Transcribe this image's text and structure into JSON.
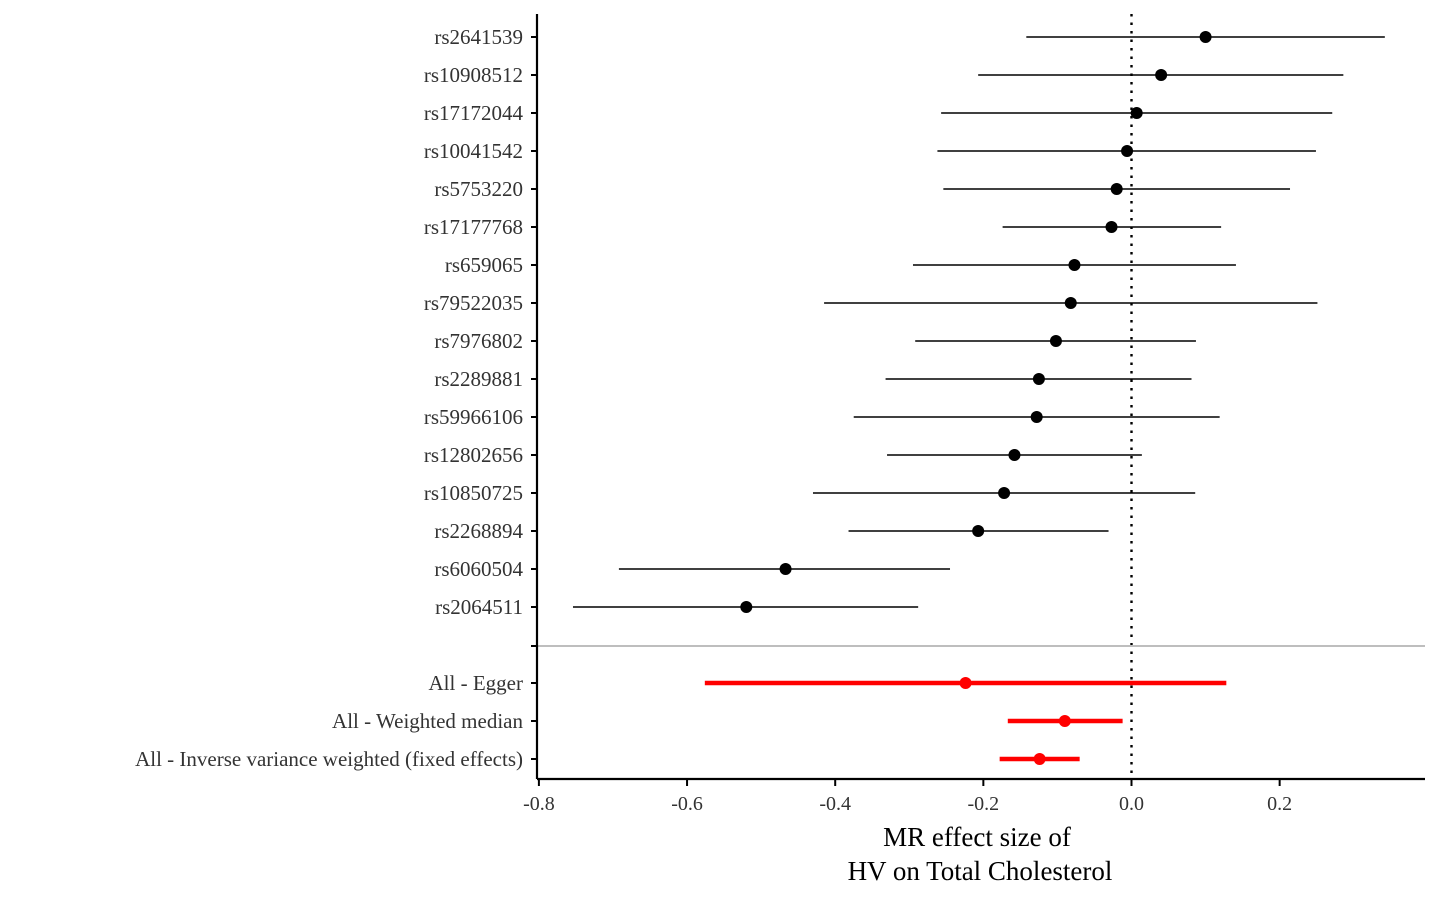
{
  "chart_data": {
    "type": "forest",
    "title": "",
    "xlabel_lines": [
      "MR effect size of",
      "HV on Total Cholesterol"
    ],
    "ylabel": "",
    "xlim": [
      -0.81,
      0.39
    ],
    "x_ticks": [
      -0.8,
      -0.6,
      -0.4,
      -0.2,
      0.0,
      0.2
    ],
    "x_tick_labels": [
      "-0.8",
      "-0.6",
      "-0.4",
      "-0.2",
      "0.0",
      "0.2"
    ],
    "reference_line": 0.0,
    "grid": false,
    "snps": [
      {
        "label": "rs2641539",
        "estimate": 0.1,
        "lower": -0.142,
        "upper": 0.342
      },
      {
        "label": "rs10908512",
        "estimate": 0.04,
        "lower": -0.207,
        "upper": 0.286
      },
      {
        "label": "rs17172044",
        "estimate": 0.007,
        "lower": -0.257,
        "upper": 0.271
      },
      {
        "label": "rs10041542",
        "estimate": -0.006,
        "lower": -0.262,
        "upper": 0.249
      },
      {
        "label": "rs5753220",
        "estimate": -0.02,
        "lower": -0.254,
        "upper": 0.214
      },
      {
        "label": "rs17177768",
        "estimate": -0.027,
        "lower": -0.174,
        "upper": 0.121
      },
      {
        "label": "rs659065",
        "estimate": -0.077,
        "lower": -0.295,
        "upper": 0.141
      },
      {
        "label": "rs79522035",
        "estimate": -0.082,
        "lower": -0.415,
        "upper": 0.251
      },
      {
        "label": "rs7976802",
        "estimate": -0.102,
        "lower": -0.292,
        "upper": 0.087
      },
      {
        "label": "rs2289881",
        "estimate": -0.125,
        "lower": -0.332,
        "upper": 0.081
      },
      {
        "label": "rs59966106",
        "estimate": -0.128,
        "lower": -0.375,
        "upper": 0.119
      },
      {
        "label": "rs12802656",
        "estimate": -0.158,
        "lower": -0.33,
        "upper": 0.014
      },
      {
        "label": "rs10850725",
        "estimate": -0.172,
        "lower": -0.43,
        "upper": 0.086
      },
      {
        "label": "rs2268894",
        "estimate": -0.207,
        "lower": -0.382,
        "upper": -0.031
      },
      {
        "label": "rs6060504",
        "estimate": -0.467,
        "lower": -0.692,
        "upper": -0.245
      },
      {
        "label": "rs2064511",
        "estimate": -0.52,
        "lower": -0.754,
        "upper": -0.288
      }
    ],
    "methods": [
      {
        "label": "All - Egger",
        "estimate": -0.224,
        "lower": -0.576,
        "upper": 0.128
      },
      {
        "label": "All - Weighted median",
        "estimate": -0.09,
        "lower": -0.167,
        "upper": -0.012
      },
      {
        "label": "All - Inverse variance weighted (fixed effects)",
        "estimate": -0.124,
        "lower": -0.178,
        "upper": -0.07
      }
    ],
    "colors": {
      "snp": "#000000",
      "method": "#ff0000",
      "separator": "#bebebe",
      "axis": "#000000",
      "reference_line": "#000000"
    }
  }
}
